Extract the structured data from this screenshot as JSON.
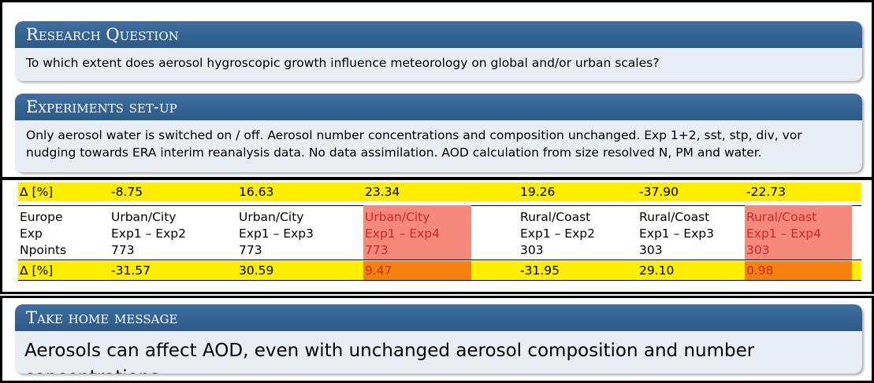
{
  "research_question": {
    "title": "Research Question",
    "text": "To which extent does aerosol hygroscopic growth influence meteorology on global and/or urban scales?"
  },
  "experiments": {
    "title": "Experiments set-up",
    "text": "Only aerosol water is switched on / off. Aerosol number concentrations and composition unchanged. Exp 1+2, sst, stp, div, vor nudging towards ERA interim reanalysis data. No data assimilation. AOD calculation from size resolved N, PM and water."
  },
  "table": {
    "top_row": [
      "Δ [%]",
      "-8.75",
      "16.63",
      "23.34",
      "19.26",
      "-37.90",
      "-22.73"
    ],
    "rows": [
      [
        "Europe",
        "Urban/City",
        "Urban/City",
        "Urban/City",
        "Rural/Coast",
        "Rural/Coast",
        "Rural/Coast"
      ],
      [
        "Exp",
        "Exp1 – Exp2",
        "Exp1 – Exp3",
        "Exp1 – Exp4",
        "Exp1 – Exp2",
        "Exp1 – Exp3",
        "Exp1 – Exp4"
      ],
      [
        "Npoints",
        "773",
        "773",
        "773",
        "303",
        "303",
        "303"
      ],
      [
        "Δ [%]",
        "-31.57",
        "30.59",
        "9.47",
        "-31.95",
        "29.10",
        "0.98"
      ]
    ]
  },
  "take_home": {
    "title": "Take home message",
    "text": "Aerosols can affect AOD, even with unchanged aerosol composition and number concentrations."
  }
}
